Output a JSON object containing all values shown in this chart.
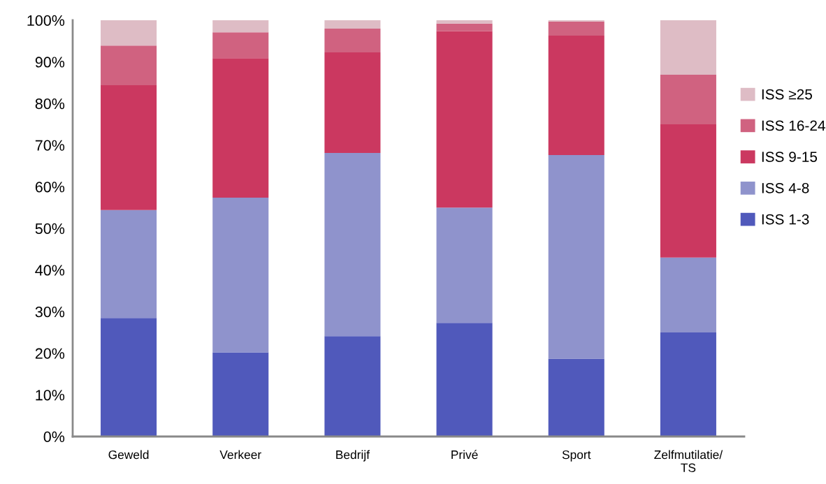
{
  "chart_data": {
    "type": "bar",
    "stacked": true,
    "categories": [
      "Geweld",
      "Verkeer",
      "Bedrijf",
      "Privé",
      "Sport",
      "Zelfmutilatie/\nTS"
    ],
    "series": [
      {
        "name": "ISS 1-3",
        "color": "#5059bb",
        "values": [
          28.5,
          20.2,
          24.1,
          27.3,
          18.7,
          25.0
        ]
      },
      {
        "name": "ISS 4-8",
        "color": "#8f93cc",
        "values": [
          25.9,
          37.2,
          44.0,
          27.7,
          48.9,
          18.0
        ]
      },
      {
        "name": "ISS 9-15",
        "color": "#cb3860",
        "values": [
          30.0,
          33.5,
          24.2,
          42.4,
          28.7,
          32.0
        ]
      },
      {
        "name": "ISS 16-24",
        "color": "#d06280",
        "values": [
          9.5,
          6.2,
          5.7,
          1.8,
          3.4,
          11.9
        ]
      },
      {
        "name": "ISS ≥25",
        "color": "#debcc5",
        "values": [
          6.1,
          2.9,
          2.0,
          0.8,
          0.3,
          13.1
        ]
      }
    ],
    "ylim": [
      0,
      100
    ],
    "yticks": [
      {
        "value": 0,
        "label": "0%"
      },
      {
        "value": 10,
        "label": "10%"
      },
      {
        "value": 20,
        "label": "20%"
      },
      {
        "value": 30,
        "label": "30%"
      },
      {
        "value": 40,
        "label": "40%"
      },
      {
        "value": 50,
        "label": "50%"
      },
      {
        "value": 60,
        "label": "60%"
      },
      {
        "value": 70,
        "label": "70%"
      },
      {
        "value": 80,
        "label": "80%"
      },
      {
        "value": 90,
        "label": "90%"
      },
      {
        "value": 100,
        "label": "100%"
      }
    ],
    "grid": false,
    "legend": "right"
  }
}
